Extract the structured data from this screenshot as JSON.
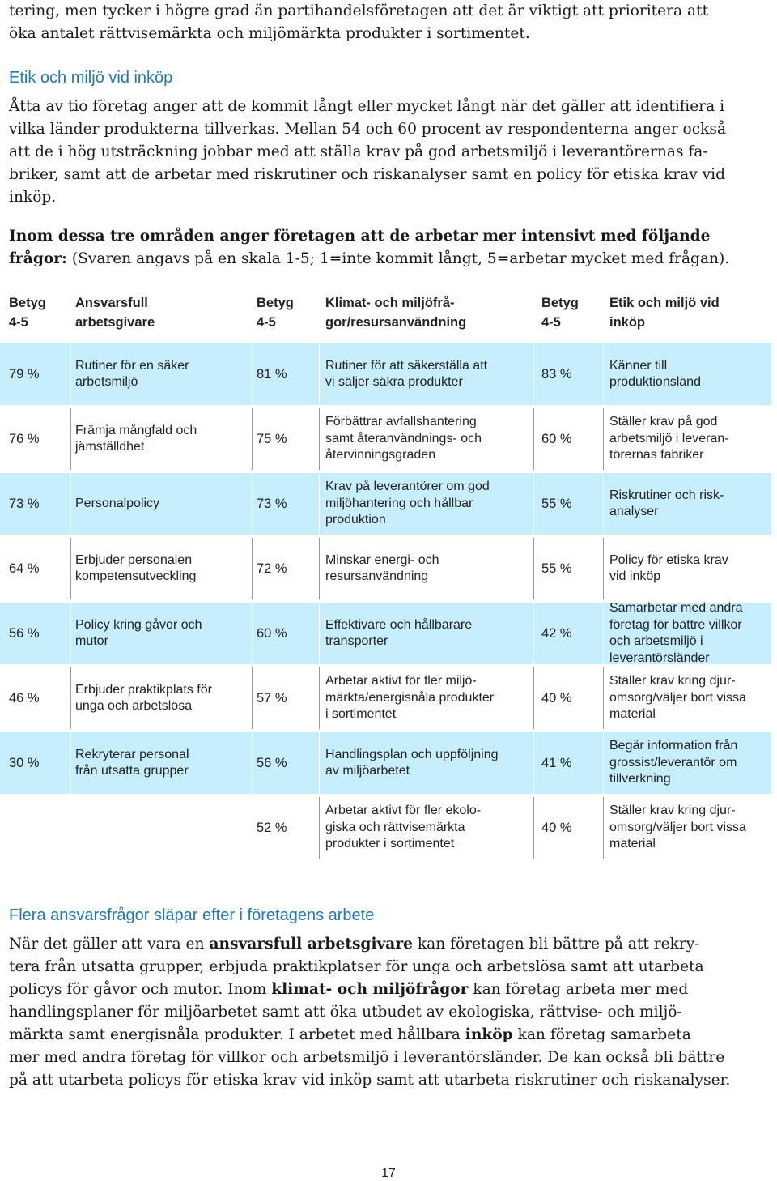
{
  "intro": {
    "lines": [
      "tering, men tycker i högre grad än partihandelsföretagen att det är viktigt att prioritera att",
      "öka antalet rättvisemärkta och miljömärkta produkter i sortimentet."
    ]
  },
  "section1": {
    "heading": "Etik och miljö vid inköp",
    "lines": [
      "Åtta av tio företag anger att de kommit långt eller mycket långt när det gäller att identifiera i",
      "vilka länder produkterna tillverkas. Mellan 54 och 60 procent av respondenterna anger också",
      "att de i hög utsträckning jobbar med att ställa krav på god arbetsmiljö i leverantörernas fa-",
      "briker, samt att de arbetar med riskrutiner och riskanalyser samt en policy för etiska krav vid",
      "inköp."
    ],
    "bold_line1": "Inom dessa tre områden anger företagen att de arbetar mer intensivt med följande",
    "bold_line2": "frågor:",
    "line2_rest": " (Svaren angavs på en skala 1-5; 1=inte kommit långt, 5=arbetar mycket med frågan)."
  },
  "table": {
    "headers": {
      "betyg1": "Betyg\n4-5",
      "col1": "Ansvarsfull\narbetsgivare",
      "betyg2": "Betyg\n4-5",
      "col2": "Klimat- och miljöfrå-\ngor/resursanvändning",
      "betyg3": "Betyg\n4-5",
      "col3": "Etik och miljö vid\ninköp"
    },
    "rows": [
      {
        "p1": "79 %",
        "t1": "Rutiner för en säker\narbetsmiljö",
        "p2": "81 %",
        "t2": "Rutiner för att säkerställa att\nvi säljer säkra produkter",
        "p3": "83 %",
        "t3": "Känner till\nproduktionsland"
      },
      {
        "p1": "76 %",
        "t1": "Främja mångfald och\njämställdhet",
        "p2": "75 %",
        "t2": "Förbättrar avfallshantering\nsamt återanvändnings- och\nåtervinningsgraden",
        "p3": "60 %",
        "t3": "Ställer krav på god\narbetsmiljö i leveran-\ntörernas fabriker"
      },
      {
        "p1": "73 %",
        "t1": "Personalpolicy",
        "p2": "73 %",
        "t2": "Krav på leverantörer om god\nmiljöhantering och hållbar\nproduktion",
        "p3": "55 %",
        "t3": "Riskrutiner och risk-\nanalyser"
      },
      {
        "p1": "64 %",
        "t1": "Erbjuder personalen\nkompetensutveckling",
        "p2": "72 %",
        "t2": "Minskar energi- och\nresursanvändning",
        "p3": "55 %",
        "t3": "Policy för etiska krav\nvid inköp"
      },
      {
        "p1": "56 %",
        "t1": "Policy kring gåvor och\nmutor",
        "p2": "60 %",
        "t2": "Effektivare och hållbarare\ntransporter",
        "p3": "42 %",
        "t3": "Samarbetar med andra\nföretag för bättre villkor\noch arbetsmiljö i\nleverantörsländer"
      },
      {
        "p1": "46 %",
        "t1": "Erbjuder praktikplats för\nunga och arbetslösa",
        "p2": "57 %",
        "t2": "Arbetar aktivt för fler miljö-\nmärkta/energisnåla produkter\ni sortimentet",
        "p3": "40 %",
        "t3": "Ställer krav kring djur-\nomsorg/väljer bort vissa\nmaterial"
      },
      {
        "p1": "30 %",
        "t1": "Rekryterar personal\nfrån utsatta grupper",
        "p2": "56 %",
        "t2": "Handlingsplan och uppföljning\nav miljöarbetet",
        "p3": "41 %",
        "t3": "Begär information från\ngrossist/leverantör om\ntillverkning"
      },
      {
        "p1": "",
        "t1": "",
        "p2": "52 %",
        "t2": "Arbetar aktivt för fler ekolo-\ngiska och rättvisemärkta\nprodukter i sortimentet",
        "p3": "40 %",
        "t3": "Ställer krav kring djur-\nomsorg/väljer bort vissa\nmaterial"
      }
    ]
  },
  "section2": {
    "heading": "Flera ansvarsfrågor släpar efter i företagens arbete",
    "l1a": "När det gäller att vara en ",
    "l1b": "ansvarsfull arbetsgivare",
    "l1c": " kan företagen bli bättre på att rekry-",
    "l2": "tera från utsatta grupper, erbjuda praktikplatser för unga och arbetslösa samt att utarbeta",
    "l3a": "policys för gåvor och mutor.  Inom ",
    "l3b": "klimat- och miljöfrågor",
    "l3c": " kan företag arbeta mer med",
    "l4": "handlingsplaner för miljöarbetet samt att öka utbudet av ekologiska, rättvise- och miljö-",
    "l5a": "märkta samt energisnåla produkter. I arbetet med hållbara ",
    "l5b": "inköp",
    "l5c": " kan företag samarbeta",
    "l6": "mer med andra företag för villkor och arbetsmiljö i leverantörsländer. De kan också bli bättre",
    "l7": "på att utarbeta policys för etiska krav vid inköp samt att utarbeta riskrutiner och riskanalyser."
  },
  "page_number": "17"
}
